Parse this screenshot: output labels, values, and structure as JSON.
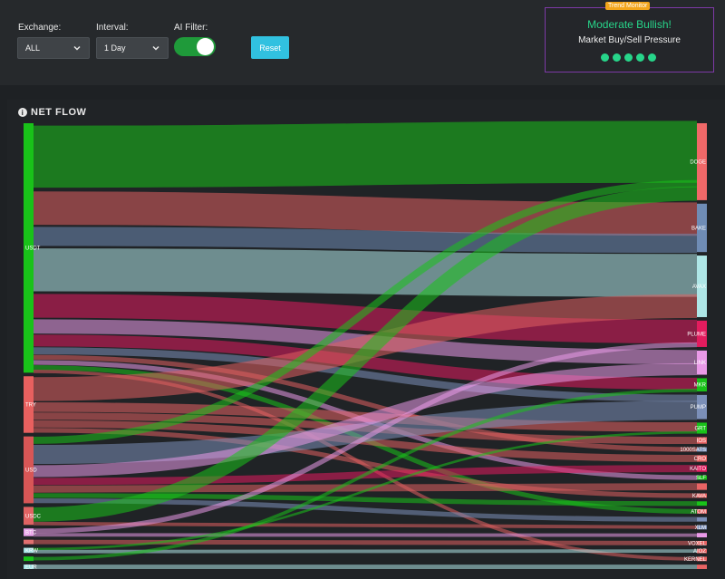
{
  "filters": {
    "exchange": {
      "label": "Exchange:",
      "value": "ALL"
    },
    "interval": {
      "label": "Interval:",
      "value": "1 Day"
    },
    "ai_filter": {
      "label": "AI Filter:",
      "enabled": true
    },
    "reset_label": "Reset"
  },
  "trend_monitor": {
    "badge": "Trend Monitor",
    "sentiment": "Moderate Bullish!",
    "subtitle": "Market Buy/Sell Pressure",
    "level": 5,
    "level_max": 5,
    "color": "#27d58a"
  },
  "panel": {
    "title": "NET FLOW",
    "icon": "info-icon"
  },
  "chart_data": {
    "type": "sankey",
    "sources": [
      {
        "name": "USDT",
        "color": "#19c219"
      },
      {
        "name": "TRY",
        "color": "#e8605f"
      },
      {
        "name": "USD",
        "color": "#d85656"
      },
      {
        "name": "USDC",
        "color": "#e06363"
      },
      {
        "name": "BTC",
        "color": "#e8a0e8"
      },
      {
        "name": "",
        "color": "#e07070"
      },
      {
        "name": "KRW",
        "color": "#9fe0e0"
      },
      {
        "name": "",
        "color": "#19c219"
      },
      {
        "name": "EUR",
        "color": "#9fe0e0"
      }
    ],
    "targets": [
      {
        "name": "DOGE",
        "color": "#f06868"
      },
      {
        "name": "BAKE",
        "color": "#6f8cb5"
      },
      {
        "name": "AVAX",
        "color": "#aee6e6"
      },
      {
        "name": "PLUME",
        "color": "#e21c5e"
      },
      {
        "name": "LINK",
        "color": "#ea9ae8"
      },
      {
        "name": "MKR",
        "color": "#19c219"
      },
      {
        "name": "PUMP",
        "color": "#7b8fb8"
      },
      {
        "name": "GRT",
        "color": "#19c219"
      },
      {
        "name": "IOS",
        "color": "#e86464"
      },
      {
        "name": "1000SATS",
        "color": "#7b8fb8"
      },
      {
        "name": "CRO",
        "color": "#e86464"
      },
      {
        "name": "KAITO",
        "color": "#e21c5e"
      },
      {
        "name": "SLF",
        "color": "#19c219"
      },
      {
        "name": "",
        "color": "#e86464"
      },
      {
        "name": "KAVA",
        "color": "#e86464"
      },
      {
        "name": "",
        "color": "#19c219"
      },
      {
        "name": "ATOM",
        "color": "#e86464"
      },
      {
        "name": "",
        "color": "#7b8fb8"
      },
      {
        "name": "XLM",
        "color": "#7b8fb8"
      },
      {
        "name": "",
        "color": "#ea9ae8"
      },
      {
        "name": "VOXEL",
        "color": "#e86464"
      },
      {
        "name": "AIOZ",
        "color": "#e86464"
      },
      {
        "name": "KERNEL",
        "color": "#e86464"
      },
      {
        "name": "",
        "color": "#e86464"
      }
    ],
    "links": [
      {
        "source": 0,
        "target": 0,
        "value": 26,
        "color": "#19c219"
      },
      {
        "source": 0,
        "target": 1,
        "value": 14,
        "color": "#e06060"
      },
      {
        "source": 0,
        "target": 1,
        "value": 8,
        "color": "#6f8cb5"
      },
      {
        "source": 0,
        "target": 2,
        "value": 18,
        "color": "#aee6e6"
      },
      {
        "source": 0,
        "target": 3,
        "value": 10,
        "color": "#e21c5e"
      },
      {
        "source": 0,
        "target": 4,
        "value": 6,
        "color": "#ea9ae8"
      },
      {
        "source": 0,
        "target": 5,
        "value": 5,
        "color": "#e21c5e"
      },
      {
        "source": 0,
        "target": 6,
        "value": 3,
        "color": "#7b8fb8"
      },
      {
        "source": 0,
        "target": 9,
        "value": 2,
        "color": "#e06060"
      },
      {
        "source": 0,
        "target": 12,
        "value": 2,
        "color": "#ea9ae8"
      },
      {
        "source": 0,
        "target": 16,
        "value": 2,
        "color": "#19c219"
      },
      {
        "source": 0,
        "target": 22,
        "value": 1,
        "color": "#e06060"
      },
      {
        "source": 1,
        "target": 2,
        "value": 10,
        "color": "#e06060"
      },
      {
        "source": 1,
        "target": 7,
        "value": 4,
        "color": "#e86464"
      },
      {
        "source": 1,
        "target": 8,
        "value": 3,
        "color": "#e06060"
      },
      {
        "source": 1,
        "target": 10,
        "value": 3,
        "color": "#e06060"
      },
      {
        "source": 1,
        "target": 14,
        "value": 2,
        "color": "#e06060"
      },
      {
        "source": 2,
        "target": 0,
        "value": 3,
        "color": "#19c219"
      },
      {
        "source": 2,
        "target": 6,
        "value": 8,
        "color": "#7b8fb8"
      },
      {
        "source": 2,
        "target": 4,
        "value": 5,
        "color": "#ea9ae8"
      },
      {
        "source": 2,
        "target": 11,
        "value": 3,
        "color": "#e21c5e"
      },
      {
        "source": 2,
        "target": 13,
        "value": 3,
        "color": "#e06060"
      },
      {
        "source": 2,
        "target": 15,
        "value": 2,
        "color": "#19c219"
      },
      {
        "source": 2,
        "target": 17,
        "value": 2,
        "color": "#7b8fb8"
      },
      {
        "source": 3,
        "target": 0,
        "value": 6,
        "color": "#19c219"
      },
      {
        "source": 3,
        "target": 18,
        "value": 1,
        "color": "#e06060"
      },
      {
        "source": 4,
        "target": 3,
        "value": 2,
        "color": "#ea9ae8"
      },
      {
        "source": 4,
        "target": 19,
        "value": 1,
        "color": "#ea9ae8"
      },
      {
        "source": 5,
        "target": 20,
        "value": 1,
        "color": "#e06060"
      },
      {
        "source": 6,
        "target": 7,
        "value": 1,
        "color": "#19c219"
      },
      {
        "source": 6,
        "target": 21,
        "value": 1,
        "color": "#aee6e6"
      },
      {
        "source": 7,
        "target": 5,
        "value": 1,
        "color": "#19c219"
      },
      {
        "source": 8,
        "target": 23,
        "value": 1,
        "color": "#aee6e6"
      }
    ]
  }
}
